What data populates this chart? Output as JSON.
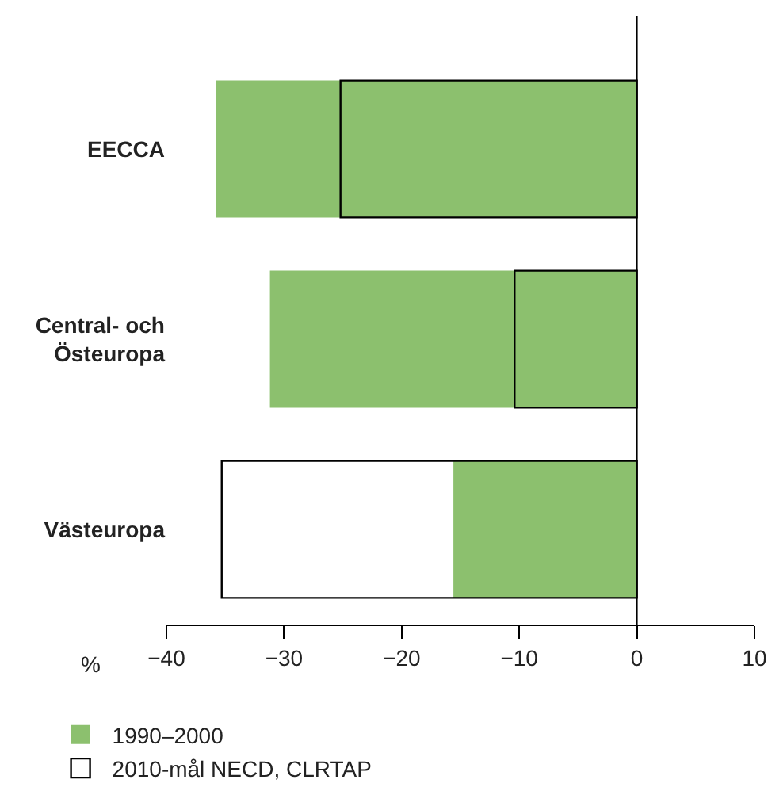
{
  "chart_data": {
    "type": "bar",
    "orientation": "horizontal",
    "xlabel": "%",
    "categories": [
      "EECCA",
      "Central- och Östeuropa",
      "Västeuropa"
    ],
    "series": [
      {
        "name": "1990–2000",
        "color": "#8cc06e",
        "values": [
          -35.8,
          -31.2,
          -15.6
        ]
      },
      {
        "name": "2010-mål NECD, CLRTAP",
        "color": "#000000",
        "values": [
          -25.2,
          -10.4,
          -35.3
        ]
      }
    ],
    "xlim": [
      -40,
      10
    ],
    "xticks": [
      -40,
      -30,
      -20,
      -10,
      0,
      10
    ],
    "ref_lines": [
      {
        "axis": "x",
        "value": 0,
        "color": "#000000"
      }
    ],
    "legend": "bottom left"
  }
}
